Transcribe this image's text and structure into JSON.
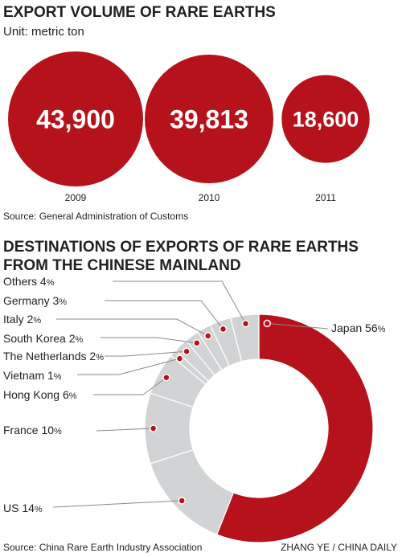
{
  "colors": {
    "red": "#b5121b",
    "red_overlap": "#8c0d14",
    "grey": "#d2d3d5",
    "text": "#231f20",
    "line": "#8a8a8a"
  },
  "section1": {
    "title": "EXPORT VOLUME OF RARE EARTHS",
    "unit": "Unit: metric ton",
    "source": "Source: General Administration of Customs"
  },
  "section2": {
    "title_line1": "DESTINATIONS OF EXPORTS OF RARE EARTHS",
    "title_line2": "FROM THE CHINESE MAINLAND",
    "source": "Source: China Rare Earth Industry Association"
  },
  "credit": "ZHANG YE / CHINA DAILY",
  "chart_data": [
    {
      "type": "bubble",
      "title": "EXPORT VOLUME OF RARE EARTHS",
      "unit": "Unit: metric ton",
      "categories": [
        "2009",
        "2010",
        "2011"
      ],
      "values": [
        43900,
        39813,
        18600
      ],
      "value_labels": [
        "43,900",
        "39,813",
        "18,600"
      ]
    },
    {
      "type": "pie",
      "subtype": "donut",
      "title": "DESTINATIONS OF EXPORTS OF RARE EARTHS FROM THE CHINESE MAINLAND",
      "slices": [
        {
          "name": "Japan",
          "value": 56,
          "label": "56%",
          "highlight": true
        },
        {
          "name": "US",
          "value": 14,
          "label": "14%"
        },
        {
          "name": "France",
          "value": 10,
          "label": "10%"
        },
        {
          "name": "Hong Kong",
          "value": 6,
          "label": "6%"
        },
        {
          "name": "Vietnam",
          "value": 1,
          "label": "1%"
        },
        {
          "name": "The Netherlands",
          "value": 2,
          "label": "2%"
        },
        {
          "name": "South Korea",
          "value": 2,
          "label": "2%"
        },
        {
          "name": "Italy",
          "value": 2,
          "label": "2%"
        },
        {
          "name": "Germany",
          "value": 3,
          "label": "3%"
        },
        {
          "name": "Others",
          "value": 4,
          "label": "4%"
        }
      ]
    }
  ]
}
